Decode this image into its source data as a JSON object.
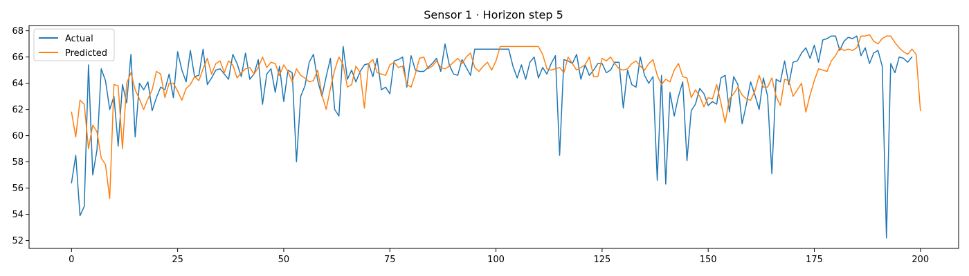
{
  "chart_data": {
    "type": "line",
    "title": "Sensor 1 · Horizon step 5",
    "xlabel": "",
    "ylabel": "",
    "xlim": [
      -10,
      209
    ],
    "ylim": [
      51.4,
      68.4
    ],
    "xticks": [
      0,
      25,
      50,
      75,
      100,
      125,
      150,
      175,
      200
    ],
    "yticks": [
      52,
      54,
      56,
      58,
      60,
      62,
      64,
      66,
      68
    ],
    "grid": false,
    "legend_position": "top-left",
    "series": [
      {
        "name": "Actual",
        "color": "#1f77b4",
        "values": [
          56.4,
          58.5,
          53.9,
          54.6,
          65.4,
          57.0,
          58.9,
          65.1,
          64.2,
          62.0,
          63.0,
          59.2,
          63.9,
          62.5,
          66.2,
          59.9,
          64.0,
          63.5,
          64.1,
          61.9,
          62.9,
          63.7,
          63.5,
          64.7,
          62.9,
          66.4,
          65.0,
          64.1,
          66.5,
          64.5,
          64.6,
          66.6,
          63.9,
          64.4,
          65.0,
          65.1,
          64.7,
          64.3,
          66.2,
          65.5,
          64.5,
          66.3,
          64.3,
          64.7,
          65.8,
          62.4,
          64.7,
          65.1,
          63.3,
          65.3,
          62.6,
          65.0,
          64.8,
          58.0,
          63.0,
          63.8,
          65.6,
          66.2,
          64.2,
          63.0,
          64.5,
          65.9,
          62.0,
          61.5,
          66.8,
          64.3,
          65.0,
          64.1,
          64.9,
          65.4,
          65.5,
          64.5,
          65.9,
          63.5,
          63.7,
          63.2,
          65.7,
          65.8,
          66.0,
          63.7,
          66.1,
          65.0,
          64.9,
          64.9,
          65.2,
          65.5,
          65.9,
          64.9,
          67.0,
          65.4,
          64.7,
          64.6,
          65.8,
          65.2,
          64.6,
          66.6,
          66.6,
          66.6,
          66.6,
          66.6,
          66.6,
          66.6,
          66.6,
          66.6,
          65.3,
          64.4,
          65.4,
          64.3,
          65.6,
          66.0,
          64.4,
          65.2,
          64.7,
          65.5,
          66.1,
          58.5,
          65.8,
          65.7,
          65.5,
          66.2,
          64.3,
          65.4,
          64.6,
          65.0,
          65.5,
          65.5,
          64.8,
          65.0,
          65.6,
          65.6,
          62.1,
          65.0,
          63.9,
          63.7,
          66.0,
          64.6,
          64.0,
          64.5,
          56.6,
          64.6,
          56.3,
          63.3,
          61.5,
          63.0,
          64.1,
          58.1,
          61.9,
          62.4,
          63.6,
          63.2,
          62.3,
          62.6,
          62.4,
          64.4,
          64.6,
          61.8,
          64.5,
          63.9,
          60.9,
          62.4,
          64.1,
          63.1,
          62.0,
          64.4,
          63.0,
          57.1,
          64.3,
          64.1,
          65.7,
          63.9,
          65.6,
          65.7,
          66.3,
          66.7,
          65.9,
          66.9,
          65.6,
          67.3,
          67.4,
          67.6,
          67.6,
          66.5,
          67.2,
          67.5,
          67.4,
          67.6,
          66.1,
          66.7,
          65.5,
          66.3,
          66.5,
          65.3,
          52.2,
          65.5,
          64.8,
          66.0,
          65.9,
          65.6,
          66.0
        ]
      },
      {
        "name": "Predicted",
        "color": "#ff7f0e",
        "values": [
          61.8,
          59.9,
          62.7,
          62.4,
          59.0,
          60.8,
          60.3,
          58.3,
          57.8,
          55.2,
          63.9,
          63.8,
          59.0,
          64.0,
          64.8,
          63.5,
          62.8,
          62.0,
          62.8,
          63.5,
          64.9,
          64.7,
          62.9,
          64.0,
          64.0,
          63.4,
          62.7,
          63.6,
          63.9,
          64.5,
          64.2,
          65.1,
          65.9,
          64.7,
          65.5,
          65.7,
          64.8,
          65.7,
          65.4,
          64.4,
          64.8,
          65.1,
          65.2,
          64.7,
          65.2,
          66.0,
          65.2,
          65.6,
          65.5,
          64.6,
          65.4,
          64.9,
          64.1,
          65.1,
          64.6,
          64.4,
          64.1,
          64.2,
          65.0,
          63.1,
          62.0,
          63.6,
          65.0,
          66.0,
          65.4,
          63.7,
          63.9,
          65.3,
          64.8,
          62.1,
          65.5,
          65.8,
          64.8,
          64.7,
          64.6,
          65.4,
          65.6,
          65.2,
          65.3,
          63.9,
          63.7,
          64.7,
          65.9,
          66.0,
          65.1,
          65.3,
          65.7,
          65.2,
          65.1,
          65.3,
          65.6,
          65.9,
          65.5,
          66.0,
          66.3,
          65.2,
          64.9,
          65.3,
          65.6,
          65.0,
          65.7,
          66.8,
          66.8,
          66.8,
          66.8,
          66.8,
          66.8,
          66.8,
          66.8,
          66.8,
          66.8,
          66.2,
          65.1,
          65.0,
          65.1,
          65.2,
          64.8,
          66.0,
          65.5,
          65.0,
          65.2,
          65.4,
          66.0,
          64.5,
          64.5,
          65.9,
          65.7,
          66.0,
          65.5,
          65.1,
          65.0,
          65.1,
          65.5,
          65.7,
          65.3,
          65.0,
          65.5,
          65.8,
          64.6,
          63.9,
          64.3,
          64.1,
          65.0,
          65.5,
          64.5,
          64.4,
          62.9,
          63.5,
          63.0,
          62.2,
          62.9,
          62.8,
          63.9,
          62.5,
          61.0,
          62.8,
          63.2,
          63.7,
          63.1,
          62.8,
          62.7,
          63.4,
          64.6,
          63.7,
          63.7,
          64.4,
          63.0,
          62.3,
          64.3,
          64.2,
          63.0,
          63.5,
          64.0,
          61.8,
          63.1,
          64.2,
          65.1,
          65.0,
          64.9,
          65.7,
          66.1,
          66.7,
          66.5,
          66.6,
          66.5,
          66.7,
          67.6,
          67.6,
          67.7,
          67.2,
          67.0,
          67.4,
          67.6,
          67.6,
          67.1,
          66.7,
          66.4,
          66.2,
          66.6,
          66.2,
          61.9
        ]
      }
    ]
  }
}
